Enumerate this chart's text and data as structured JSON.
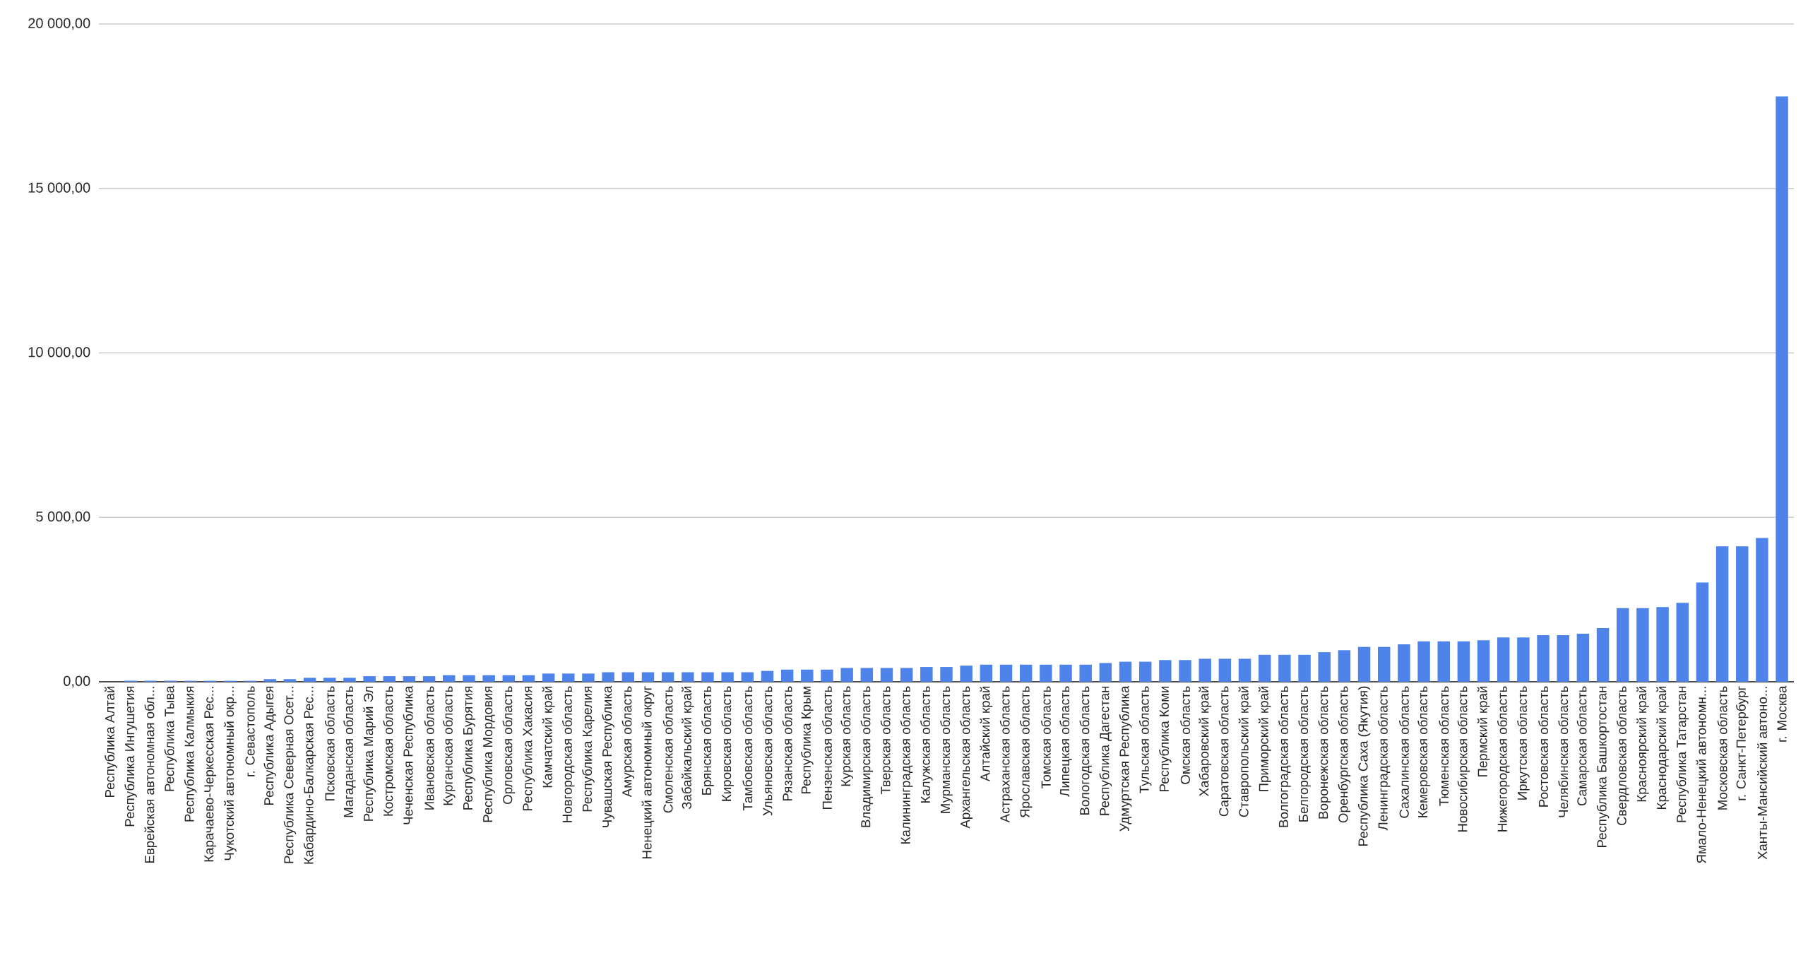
{
  "chart_data": {
    "type": "bar",
    "color": "#4e84ea",
    "grid": "y",
    "categories": [
      "Республика Алтай",
      "Республика Ингушетия",
      "Еврейская автономная обл...",
      "Республика Тыва",
      "Республика Калмыкия",
      "Карачаево-Черкесская Рес...",
      "Чукотский автономный окр...",
      "г. Севастополь",
      "Республика Адыгея",
      "Республика Северная Осет...",
      "Кабардино-Балкарская Рес...",
      "Псковская область",
      "Магаданская область",
      "Республика Марий Эл",
      "Костромская область",
      "Чеченская Республика",
      "Ивановская область",
      "Курганская область",
      "Республика Бурятия",
      "Республика Мордовия",
      "Орловская область",
      "Республика Хакасия",
      "Камчатский край",
      "Новгородская область",
      "Республика Карелия",
      "Чувашская Республика",
      "Амурская область",
      "Ненецкий автономный округ",
      "Смоленская область",
      "Забайкальский край",
      "Брянская область",
      "Кировская область",
      "Тамбовская область",
      "Ульяновская область",
      "Рязанская область",
      "Республика Крым",
      "Пензенская область",
      "Курская область",
      "Владимирская область",
      "Тверская область",
      "Калининградская область",
      "Калужская область",
      "Мурманская область",
      "Архангельская область",
      "Алтайский край",
      "Астраханская область",
      "Ярославская область",
      "Томская область",
      "Липецкая область",
      "Вологодская область",
      "Республика Дагестан",
      "Удмуртская Республика",
      "Тульская область",
      "Республика Коми",
      "Омская область",
      "Хабаровский край",
      "Саратовская область",
      "Ставропольский край",
      "Приморский край",
      "Волгоградская область",
      "Белгородская область",
      "Воронежская область",
      "Оренбургская область",
      "Республика Саха (Якутия)",
      "Ленинградская область",
      "Сахалинская область",
      "Кемеровская область",
      "Тюменская область",
      "Новосибирская область",
      "Пермский край",
      "Нижегородская область",
      "Иркутская область",
      "Ростовская область",
      "Челябинская область",
      "Самарская область",
      "Республика Башкортостан",
      "Свердловская область",
      "Красноярский край",
      "Краснодарский край",
      "Республика Татарстан",
      "Ямало-Ненецкий автономн...",
      "Московская область",
      "г. Санкт-Петербург",
      "Ханты-Мансийский автоно...",
      "г. Москва"
    ],
    "values": [
      null,
      30,
      30,
      30,
      30,
      30,
      30,
      30,
      80,
      80,
      120,
      120,
      120,
      170,
      170,
      170,
      170,
      200,
      200,
      200,
      200,
      200,
      250,
      250,
      250,
      290,
      290,
      290,
      290,
      290,
      290,
      290,
      290,
      330,
      370,
      370,
      370,
      420,
      420,
      420,
      420,
      450,
      450,
      490,
      520,
      520,
      520,
      520,
      520,
      520,
      570,
      610,
      610,
      660,
      660,
      700,
      700,
      700,
      820,
      820,
      820,
      900,
      960,
      1060,
      1060,
      1140,
      1230,
      1230,
      1230,
      1260,
      1350,
      1350,
      1420,
      1420,
      1460,
      1630,
      2240,
      2240,
      2270,
      2400,
      3020,
      4120,
      4120,
      4370,
      17800
    ],
    "ylim": [
      0,
      20000
    ],
    "yticks": [
      {
        "value": 0,
        "label": "0,00"
      },
      {
        "value": 5000,
        "label": "5 000,00"
      },
      {
        "value": 10000,
        "label": "10 000,00"
      },
      {
        "value": 15000,
        "label": "15 000,00"
      },
      {
        "value": 20000,
        "label": "20 000,00"
      }
    ]
  }
}
